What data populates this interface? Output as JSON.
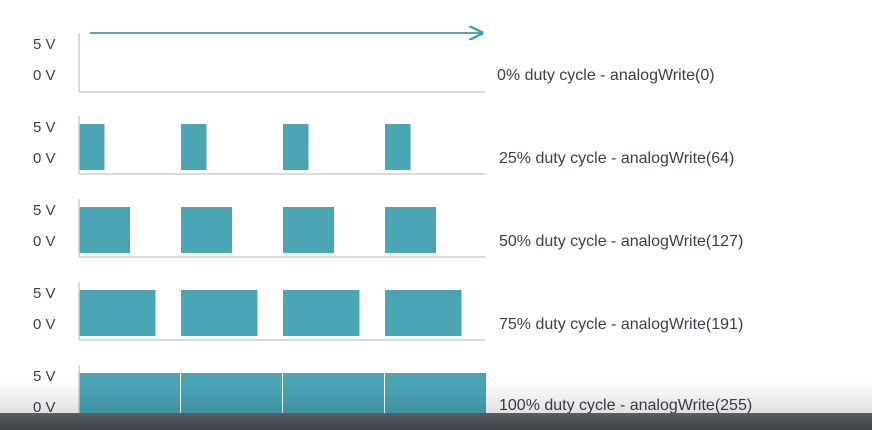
{
  "colors": {
    "pulse": "#4aa6b5",
    "axis": "#cfcfcf",
    "arrow": "#3c9bb0",
    "text": "#3a3f4b"
  },
  "voltage_labels": {
    "high": "5 V",
    "low": "0 V"
  },
  "rows": [
    {
      "caption": "0% duty cycle - analogWrite(0)",
      "duty": 0.0
    },
    {
      "caption": "25% duty cycle - analogWrite(64)",
      "duty": 0.25
    },
    {
      "caption": "50% duty cycle - analogWrite(127)",
      "duty": 0.5
    },
    {
      "caption": "75% duty cycle - analogWrite(191)",
      "duty": 0.75
    },
    {
      "caption": "100% duty cycle - analogWrite(255)",
      "duty": 1.0
    }
  ],
  "periods": 4
}
